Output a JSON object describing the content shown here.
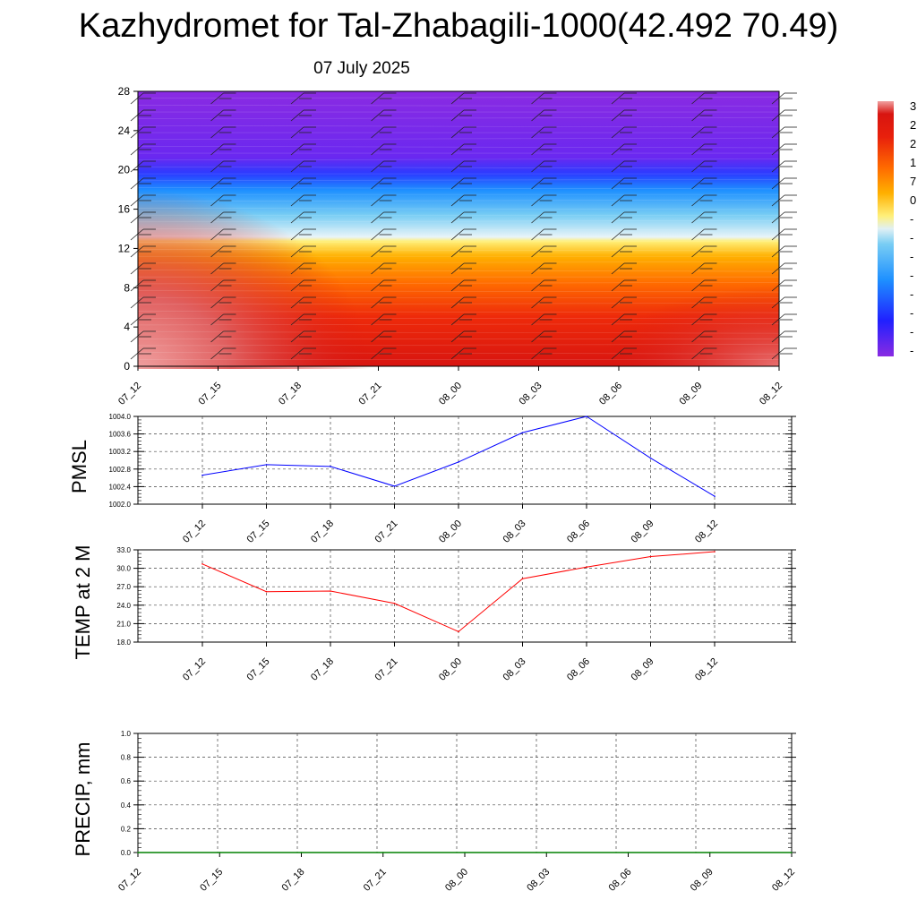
{
  "title": "Kazhydromet for Tal-Zhabagili-1000(42.492 70.49)",
  "date": "07 July 2025",
  "chart_data": [
    {
      "type": "heatmap",
      "name": "vertical-cross-section",
      "x_categories": [
        "07_12",
        "07_15",
        "07_18",
        "07_21",
        "08_00",
        "08_03",
        "08_06",
        "08_09",
        "08_12"
      ],
      "y_ticks": [
        0,
        4,
        8,
        12,
        16,
        20,
        24,
        28
      ],
      "ylim": [
        0,
        28
      ],
      "colorbar_labels": [
        "3",
        "2",
        "2",
        "1",
        "7",
        "0",
        "-",
        "-",
        "-",
        "-",
        "-",
        "-",
        "-",
        "-"
      ],
      "colors": {
        "violet": "#8a2be2",
        "blue": "#2828ff",
        "cyan": "#3ab0f0",
        "pale": "#d8f0f8",
        "yellow": "#ffff80",
        "orange": "#ff9a00",
        "red": "#e8200c",
        "darkred": "#d01010",
        "pink": "#e85050"
      }
    },
    {
      "type": "line",
      "name": "PMSL",
      "ylabel": "PMSL",
      "categories": [
        "07_12",
        "07_15",
        "07_18",
        "07_21",
        "08_00",
        "08_03",
        "08_06",
        "08_09",
        "08_12"
      ],
      "values": [
        1002.66,
        1002.9,
        1002.86,
        1002.41,
        1002.96,
        1003.63,
        1004.0,
        1003.05,
        1002.18
      ],
      "ylim": [
        1002.0,
        1004.0
      ],
      "yticks": [
        "1002.0",
        "1002.4",
        "1002.8",
        "1003.2",
        "1003.6",
        "1004.0"
      ],
      "color": "#0000ff",
      "grid": true
    },
    {
      "type": "line",
      "name": "TEMP at 2 M",
      "ylabel": "TEMP at 2 M",
      "categories": [
        "07_12",
        "07_15",
        "07_18",
        "07_21",
        "08_00",
        "08_03",
        "08_06",
        "08_09",
        "08_12"
      ],
      "values": [
        30.7,
        26.2,
        26.3,
        24.3,
        19.7,
        28.3,
        30.2,
        31.9,
        32.7
      ],
      "ylim": [
        18.0,
        33.0
      ],
      "yticks": [
        "18.0",
        "21.0",
        "24.0",
        "27.0",
        "30.0",
        "33.0"
      ],
      "color": "#ff0000",
      "grid": true
    },
    {
      "type": "line",
      "name": "PRECIP, mm",
      "ylabel": "PRECIP, mm",
      "categories": [
        "07_12",
        "07_15",
        "07_18",
        "07_21",
        "08_00",
        "08_03",
        "08_06",
        "08_09",
        "08_12"
      ],
      "values": [
        0,
        0,
        0,
        0,
        0,
        0,
        0,
        0,
        0
      ],
      "ylim": [
        0.0,
        1.0
      ],
      "yticks": [
        "0.0",
        "0.2",
        "0.4",
        "0.6",
        "0.8",
        "1.0"
      ],
      "color": "#008000",
      "grid": true
    }
  ]
}
